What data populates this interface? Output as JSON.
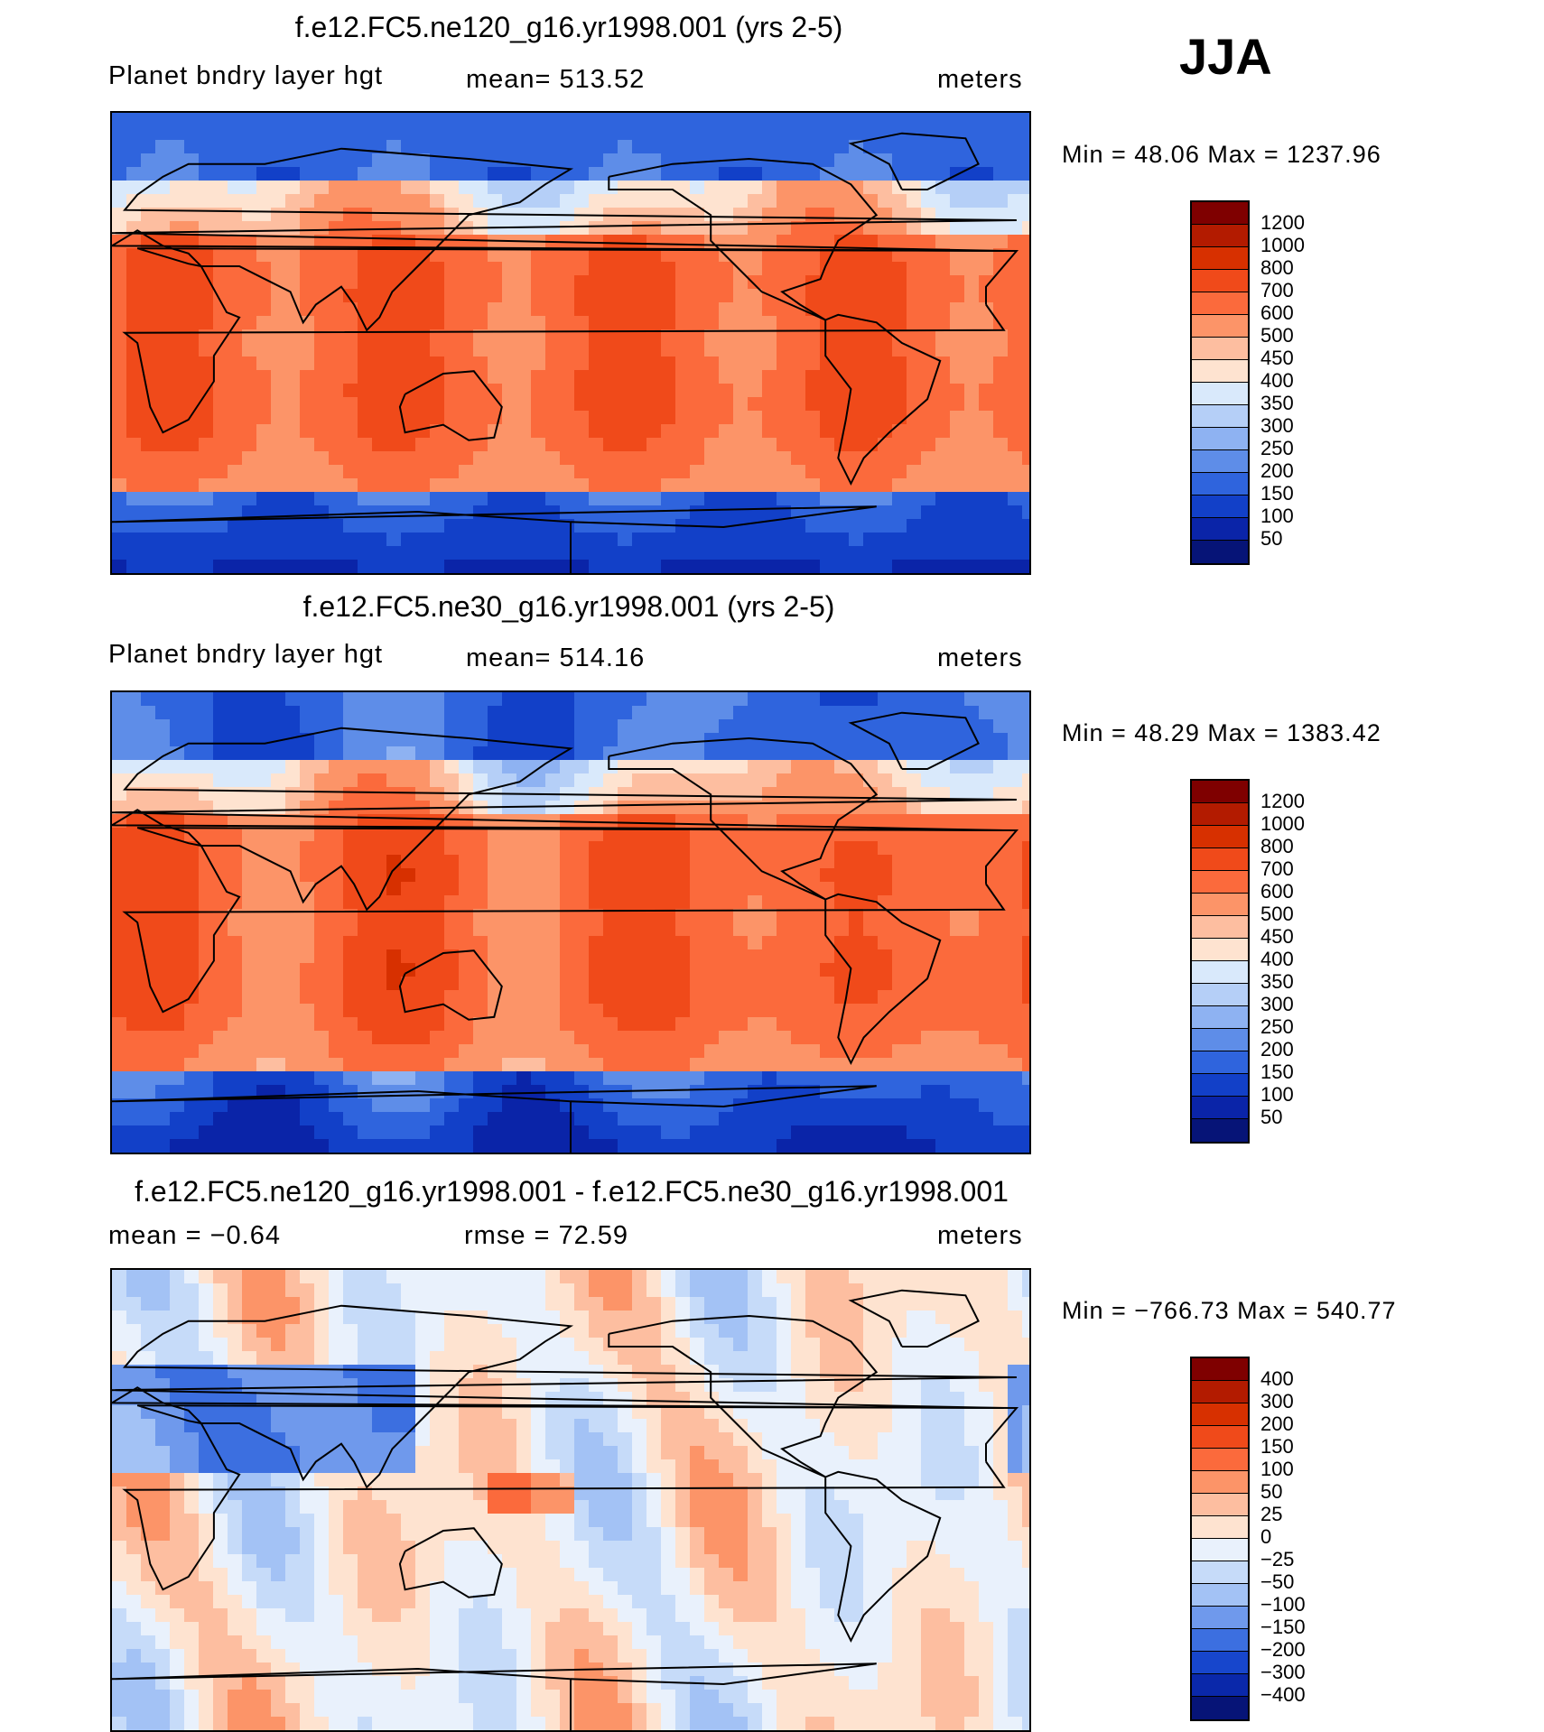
{
  "season": "JJA",
  "panels": [
    {
      "title": "f.e12.FC5.ne120_g16.yr1998.001 (yrs 2-5)",
      "left_label": "Planet bndry layer hgt",
      "center_label": "mean= 513.52",
      "units": "meters",
      "minmax": "Min =   48.06 Max = 1237.96",
      "map_name": "pblh-map-ne120"
    },
    {
      "title": "f.e12.FC5.ne30_g16.yr1998.001 (yrs 2-5)",
      "left_label": "Planet bndry layer hgt",
      "center_label": "mean= 514.16",
      "units": "meters",
      "minmax": "Min =   48.29 Max = 1383.42",
      "map_name": "pblh-map-ne30"
    },
    {
      "title": "f.e12.FC5.ne120_g16.yr1998.001 - f.e12.FC5.ne30_g16.yr1998.001",
      "left_label": "mean =   −0.64",
      "center_label": "rmse =    72.59",
      "units": "meters",
      "minmax": "Min = −766.73 Max = 540.77",
      "map_name": "pblh-diff-map"
    }
  ],
  "colorbars": {
    "abs": {
      "labels": [
        "1200",
        "1000",
        "800",
        "700",
        "600",
        "500",
        "450",
        "400",
        "350",
        "300",
        "250",
        "200",
        "150",
        "100",
        "50"
      ],
      "colors": [
        "#7f0000",
        "#b31b00",
        "#d73000",
        "#f04a1a",
        "#fb6a3c",
        "#fc9468",
        "#fdbea0",
        "#fee3d0",
        "#d9e9fb",
        "#b5cff7",
        "#8eb2f2",
        "#5e8de8",
        "#2f64dd",
        "#1240c8",
        "#0a24a8",
        "#061477"
      ]
    },
    "diff": {
      "labels": [
        "400",
        "300",
        "200",
        "150",
        "100",
        "50",
        "25",
        "0",
        "−25",
        "−50",
        "−100",
        "−150",
        "−200",
        "−300",
        "−400"
      ],
      "colors": [
        "#7f0000",
        "#b31b00",
        "#d73000",
        "#f04a1a",
        "#fb6a3c",
        "#fc9468",
        "#fdbea0",
        "#fee3d0",
        "#e9f1fc",
        "#c6dbf9",
        "#a3c2f5",
        "#6f99ec",
        "#3c6fe0",
        "#1746cc",
        "#0a28aa",
        "#061477"
      ]
    }
  },
  "chart_data": [
    {
      "type": "heatmap",
      "title": "f.e12.FC5.ne120_g16.yr1998.001 (yrs 2-5)",
      "variable": "Planet bndry layer hgt",
      "units": "meters",
      "season": "JJA",
      "mean": 513.52,
      "min": 48.06,
      "max": 1237.96,
      "contour_levels": [
        50,
        100,
        150,
        200,
        250,
        300,
        350,
        400,
        450,
        500,
        600,
        700,
        800,
        1000,
        1200
      ]
    },
    {
      "type": "heatmap",
      "title": "f.e12.FC5.ne30_g16.yr1998.001 (yrs 2-5)",
      "variable": "Planet bndry layer hgt",
      "units": "meters",
      "season": "JJA",
      "mean": 514.16,
      "min": 48.29,
      "max": 1383.42,
      "contour_levels": [
        50,
        100,
        150,
        200,
        250,
        300,
        350,
        400,
        450,
        500,
        600,
        700,
        800,
        1000,
        1200
      ]
    },
    {
      "type": "heatmap",
      "title": "f.e12.FC5.ne120_g16.yr1998.001 - f.e12.FC5.ne30_g16.yr1998.001",
      "units": "meters",
      "season": "JJA",
      "mean": -0.64,
      "rmse": 72.59,
      "min": -766.73,
      "max": 540.77,
      "contour_levels": [
        -400,
        -300,
        -200,
        -150,
        -100,
        -50,
        -25,
        0,
        25,
        50,
        100,
        150,
        200,
        300,
        400
      ]
    }
  ]
}
